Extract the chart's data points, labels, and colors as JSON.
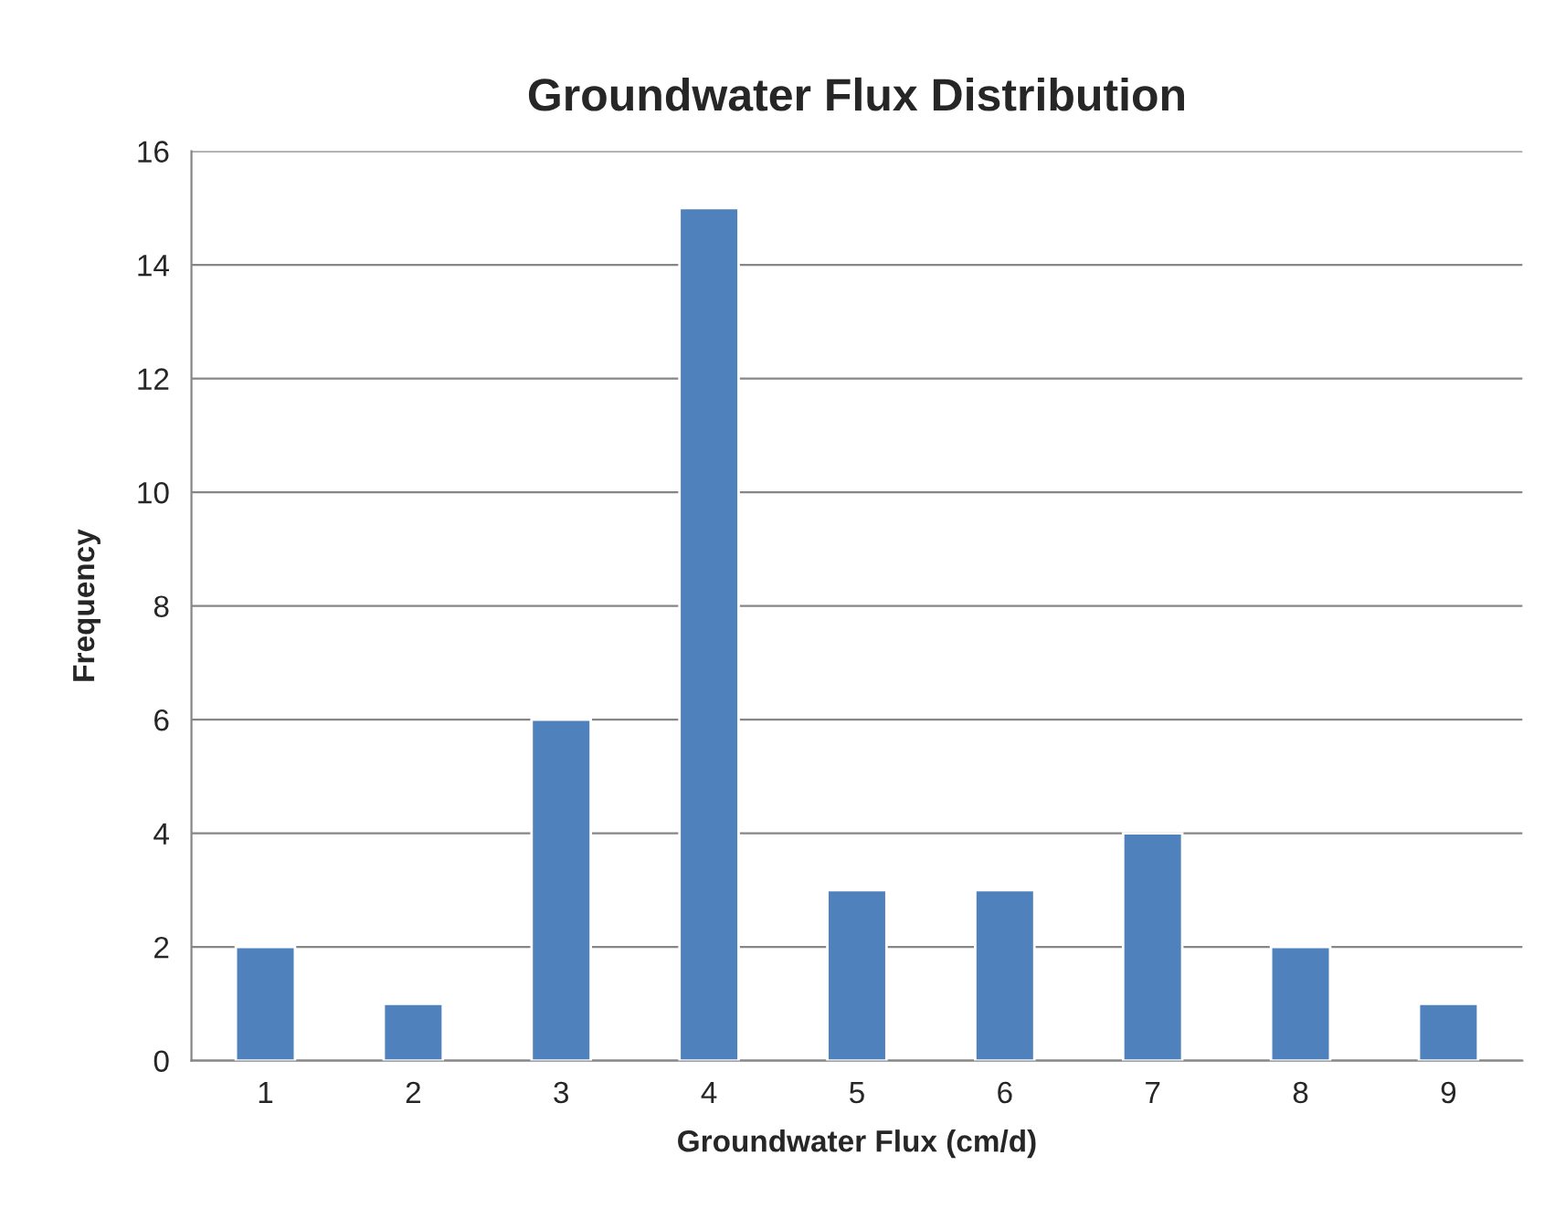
{
  "chart_data": {
    "type": "bar",
    "title": "Groundwater Flux Distribution",
    "xlabel": "Groundwater Flux (cm/d)",
    "ylabel": "Frequency",
    "categories": [
      "1",
      "2",
      "3",
      "4",
      "5",
      "6",
      "7",
      "8",
      "9"
    ],
    "values": [
      2,
      1,
      6,
      15,
      3,
      3,
      4,
      2,
      1
    ],
    "color": "#4f81bd",
    "ylim": [
      0,
      16
    ],
    "yticks": [
      0,
      2,
      4,
      6,
      8,
      10,
      12,
      14,
      16
    ],
    "grid": "y",
    "legend": false
  }
}
